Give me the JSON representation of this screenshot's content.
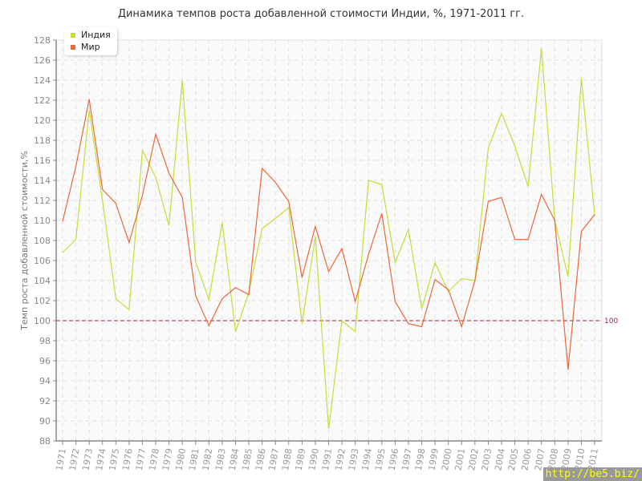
{
  "chart_data": {
    "type": "line",
    "title": "Динамика темпов роста добавленной стоимости Индии, %, 1971-2011 гг.",
    "xlabel": "",
    "ylabel": "Темп роста добавленной стоимости,%",
    "ylim": [
      88,
      128
    ],
    "yticks": [
      "88",
      "90",
      "92",
      "94",
      "96",
      "98",
      "100",
      "102",
      "104",
      "106",
      "108",
      "110",
      "112",
      "114",
      "116",
      "118",
      "120",
      "122",
      "124",
      "126",
      "128"
    ],
    "x": [
      "1971",
      "1972",
      "1973",
      "1974",
      "1975",
      "1976",
      "1977",
      "1978",
      "1979",
      "1980",
      "1981",
      "1982",
      "1983",
      "1984",
      "1985",
      "1986",
      "1987",
      "1988",
      "1989",
      "1990",
      "1991",
      "1992",
      "1993",
      "1994",
      "1995",
      "1996",
      "1997",
      "1998",
      "1999",
      "2000",
      "2001",
      "2002",
      "2003",
      "2004",
      "2005",
      "2006",
      "2007",
      "2008",
      "2009",
      "2010",
      "2011"
    ],
    "grid": true,
    "legend_position": "top-left",
    "reference_line": {
      "value": 100,
      "label": "100",
      "color": "#a0283a"
    },
    "series": [
      {
        "name": "Индия",
        "color": "#c3dd3a",
        "values": [
          106.8,
          108.1,
          121,
          112,
          102.2,
          101.1,
          117,
          114.3,
          109.5,
          124,
          105.9,
          102.1,
          109.8,
          98.9,
          102.8,
          109.2,
          110.2,
          111.3,
          99.7,
          108.4,
          89.2,
          100,
          98.9,
          114,
          113.6,
          105.8,
          109.1,
          101.2,
          105.8,
          102.9,
          104.2,
          104,
          117.2,
          120.7,
          117.4,
          113.4,
          127.2,
          110,
          104.4,
          124.2,
          110.5
        ]
      },
      {
        "name": "Мир",
        "color": "#e8683a",
        "values": [
          109.9,
          115.4,
          122.1,
          113.1,
          111.7,
          107.8,
          112.5,
          118.6,
          114.7,
          112.3,
          102.5,
          99.5,
          102.2,
          103.3,
          102.6,
          115.2,
          113.8,
          111.9,
          104.3,
          109.4,
          104.9,
          107.2,
          101.9,
          106.6,
          110.7,
          101.9,
          99.7,
          99.4,
          104.1,
          103.1,
          99.4,
          104,
          111.9,
          112.3,
          108.1,
          108.1,
          112.6,
          110,
          95.1,
          108.9,
          110.6
        ]
      }
    ]
  },
  "watermark": "http://be5.biz/"
}
